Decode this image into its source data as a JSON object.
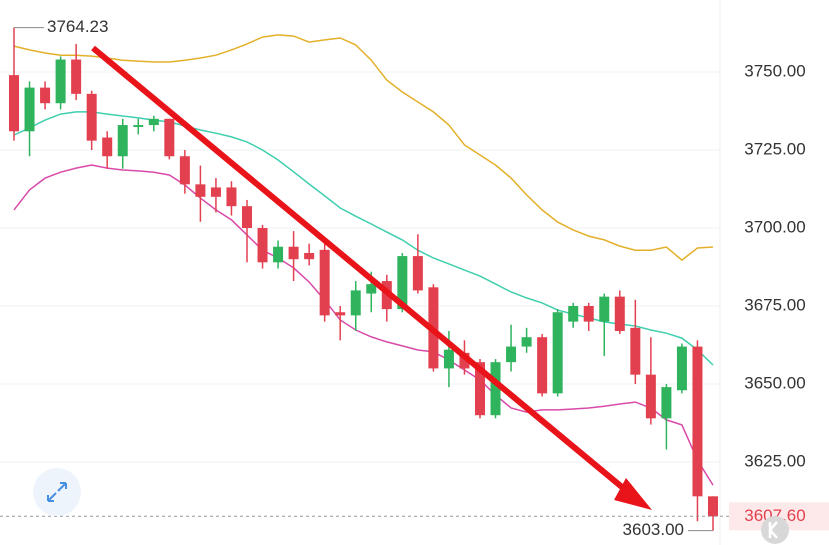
{
  "chart_data": {
    "type": "candlestick",
    "up_color": "#2fb35c",
    "down_color": "#e2404f",
    "ylim": [
      3598.4,
      3773.08
    ],
    "yticks": [
      {
        "value": 3750,
        "label": "3750.00"
      },
      {
        "value": 3725,
        "label": "3725.00"
      },
      {
        "value": 3700,
        "label": "3700.00"
      },
      {
        "value": 3675,
        "label": "3675.00"
      },
      {
        "value": 3650,
        "label": "3650.00"
      },
      {
        "value": 3625,
        "label": "3625.00"
      }
    ],
    "grid": true,
    "open": [
      3749,
      3731,
      3745,
      3740,
      3754,
      3743,
      3729,
      3723,
      3732.4,
      3733,
      3735,
      3723,
      3714,
      3713,
      3713,
      3707,
      3700,
      3689,
      3694,
      3692,
      3693,
      3673,
      3672,
      3679,
      3683,
      3674,
      3691,
      3681,
      3655,
      3660,
      3657,
      3640,
      3657,
      3662,
      3665,
      3647,
      3670,
      3675,
      3670,
      3678,
      3668,
      3653,
      3639,
      3648,
      3662,
      3614
    ],
    "high": [
      3764.23,
      3747,
      3747,
      3755,
      3759,
      3744,
      3731,
      3735,
      3735,
      3736,
      3735,
      3725,
      3720,
      3716,
      3715,
      3709,
      3701,
      3696,
      3699,
      3695,
      3696,
      3675,
      3683,
      3686,
      3685,
      3692,
      3698,
      3682,
      3667,
      3664,
      3658,
      3658,
      3669,
      3668,
      3666,
      3674,
      3676,
      3676,
      3679,
      3680,
      3677,
      3665,
      3650,
      3663,
      3664,
      3614
    ],
    "low": [
      3728,
      3723,
      3738,
      3738,
      3741,
      3725,
      3719,
      3719,
      3730,
      3731,
      3722,
      3711,
      3702,
      3705,
      3704,
      3689,
      3687,
      3687,
      3683,
      3688,
      3670,
      3664,
      3667,
      3673,
      3670,
      3673,
      3679,
      3654,
      3649,
      3653,
      3639,
      3639,
      3654,
      3660,
      3646,
      3646,
      3668,
      3667,
      3659,
      3666,
      3650,
      3637,
      3629,
      3647,
      3606,
      3603
    ],
    "close": [
      3731,
      3745,
      3740,
      3754,
      3743,
      3728,
      3723,
      3733,
      3733,
      3735,
      3723,
      3714,
      3710,
      3710,
      3707,
      3700,
      3689,
      3694,
      3690,
      3690,
      3672,
      3672,
      3680,
      3682,
      3674,
      3691,
      3680,
      3655,
      3661,
      3655,
      3640,
      3657,
      3662,
      3665,
      3647,
      3673,
      3675,
      3670,
      3678,
      3667,
      3653,
      3639,
      3649,
      3662,
      3614,
      3607.6
    ],
    "series": [
      {
        "color": "#e4b02a",
        "values": [
          3758.3,
          3757.1,
          3756.1,
          3755.4,
          3755.4,
          3755.1,
          3754.5,
          3753.8,
          3753.5,
          3753.2,
          3753.2,
          3753.8,
          3754.5,
          3755.4,
          3757.1,
          3759.0,
          3761.2,
          3761.9,
          3761.5,
          3759.6,
          3760.3,
          3760.9,
          3758.7,
          3753.8,
          3747.4,
          3743.6,
          3740.4,
          3737.2,
          3733.0,
          3726.6,
          3723.4,
          3720.2,
          3716.0,
          3710.6,
          3705.8,
          3701.9,
          3699.4,
          3697.4,
          3696.2,
          3694.2,
          3692.9,
          3692.9,
          3693.9,
          3689.7,
          3693.6,
          3693.9
        ]
      },
      {
        "color": "#3fcfae",
        "values": [
          3729.8,
          3732.1,
          3734.6,
          3736.5,
          3737.2,
          3737.2,
          3736.5,
          3735.9,
          3735.3,
          3734.6,
          3734.0,
          3732.7,
          3731.4,
          3730.4,
          3729.2,
          3727.6,
          3725.0,
          3721.8,
          3718.0,
          3714.1,
          3710.3,
          3706.4,
          3703.8,
          3701.3,
          3698.7,
          3696.2,
          3692.9,
          3690.4,
          3688.5,
          3686.5,
          3684.6,
          3682.1,
          3679.5,
          3677.6,
          3676.0,
          3673.7,
          3672.4,
          3671.2,
          3669.9,
          3669.2,
          3668.6,
          3667.3,
          3666.3,
          3664.7,
          3660.9,
          3656.1
        ]
      },
      {
        "color": "#d94aa8",
        "values": [
          3705.8,
          3712.2,
          3716.0,
          3717.9,
          3719.2,
          3720.2,
          3719.2,
          3718.6,
          3718.3,
          3717.9,
          3717.0,
          3713.8,
          3709.6,
          3705.8,
          3702.6,
          3697.8,
          3692.9,
          3690.4,
          3687.2,
          3682.7,
          3676.9,
          3670.5,
          3667.3,
          3665.1,
          3663.5,
          3662.2,
          3660.9,
          3660.3,
          3657.7,
          3654.5,
          3651.3,
          3646.5,
          3642.3,
          3641.0,
          3641.7,
          3641.7,
          3642.0,
          3642.3,
          3642.9,
          3643.6,
          3644.2,
          3642.3,
          3638.5,
          3636.9,
          3625.6,
          3617.6
        ]
      }
    ],
    "high_label": {
      "value": 3764.23,
      "label": "3764.23"
    },
    "low_label": {
      "value": 3603.0,
      "label": "3603.00"
    },
    "last_label": {
      "value": 3607.6,
      "label": "3607.60"
    }
  }
}
